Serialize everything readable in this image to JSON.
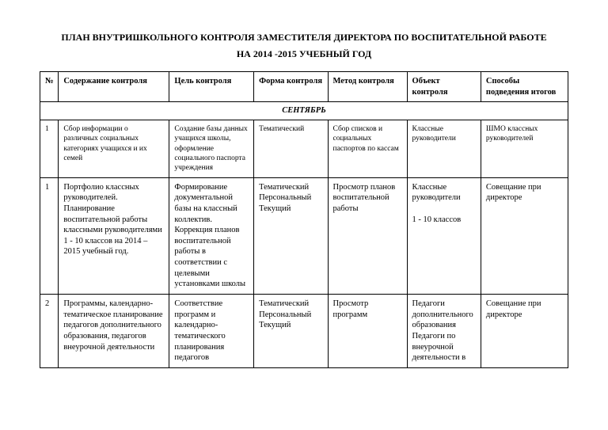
{
  "header": {
    "title": "ПЛАН ВНУТРИШКОЛЬНОГО КОНТРОЛЯ ЗАМЕСТИТЕЛЯ ДИРЕКТОРА ПО ВОСПИТАТЕЛЬНОЙ РАБОТЕ",
    "subtitle": "НА 2014 -2015 УЧЕБНЫЙ ГОД"
  },
  "columns": [
    "№",
    "Содержание контроля",
    "Цель контроля",
    "Форма контроля",
    "Метод контроля",
    "Объект контроля",
    "Способы подведения итогов"
  ],
  "month": "СЕНТЯБРЬ",
  "rows": [
    {
      "num": "1",
      "content": "Сбор информации о различных социальных категориях учащихся и их семей",
      "goal": "Создание базы данных учащихся школы, оформление социального паспорта учреждения",
      "form": "Тематический",
      "method": "Сбор списков и социальных паспортов по кассам",
      "object": "Классные руководители",
      "result": "ШМО классных руководителей",
      "small": true
    },
    {
      "num": "1",
      "content": "Портфолио классных руководителей. Планирование воспитательной работы классными руководителями 1 - 10 классов на 2014 – 2015 учебный год.",
      "goal": "Формирование документальной базы на классный коллектив. Коррекция планов воспитательной работы в соответствии с целевыми установками школы",
      "form": "Тематический Персональный Текущий",
      "method": "Просмотр планов воспитательной работы",
      "object": "Классные руководители\n\n1 - 10 классов",
      "result": "Совещание при директоре",
      "small": false
    },
    {
      "num": "2",
      "content": "Программы, календарно-тематическое планирование педагогов дополнительного образования, педагогов внеурочной деятельности",
      "goal": "Соответствие программ и календарно-тематического планирования педагогов",
      "form": "Тематический Персональный Текущий",
      "method": "Просмотр программ",
      "object": "Педагоги дополнительного образования Педагоги по внеурочной деятельности в",
      "result": "Совещание при директоре",
      "small": false
    }
  ]
}
